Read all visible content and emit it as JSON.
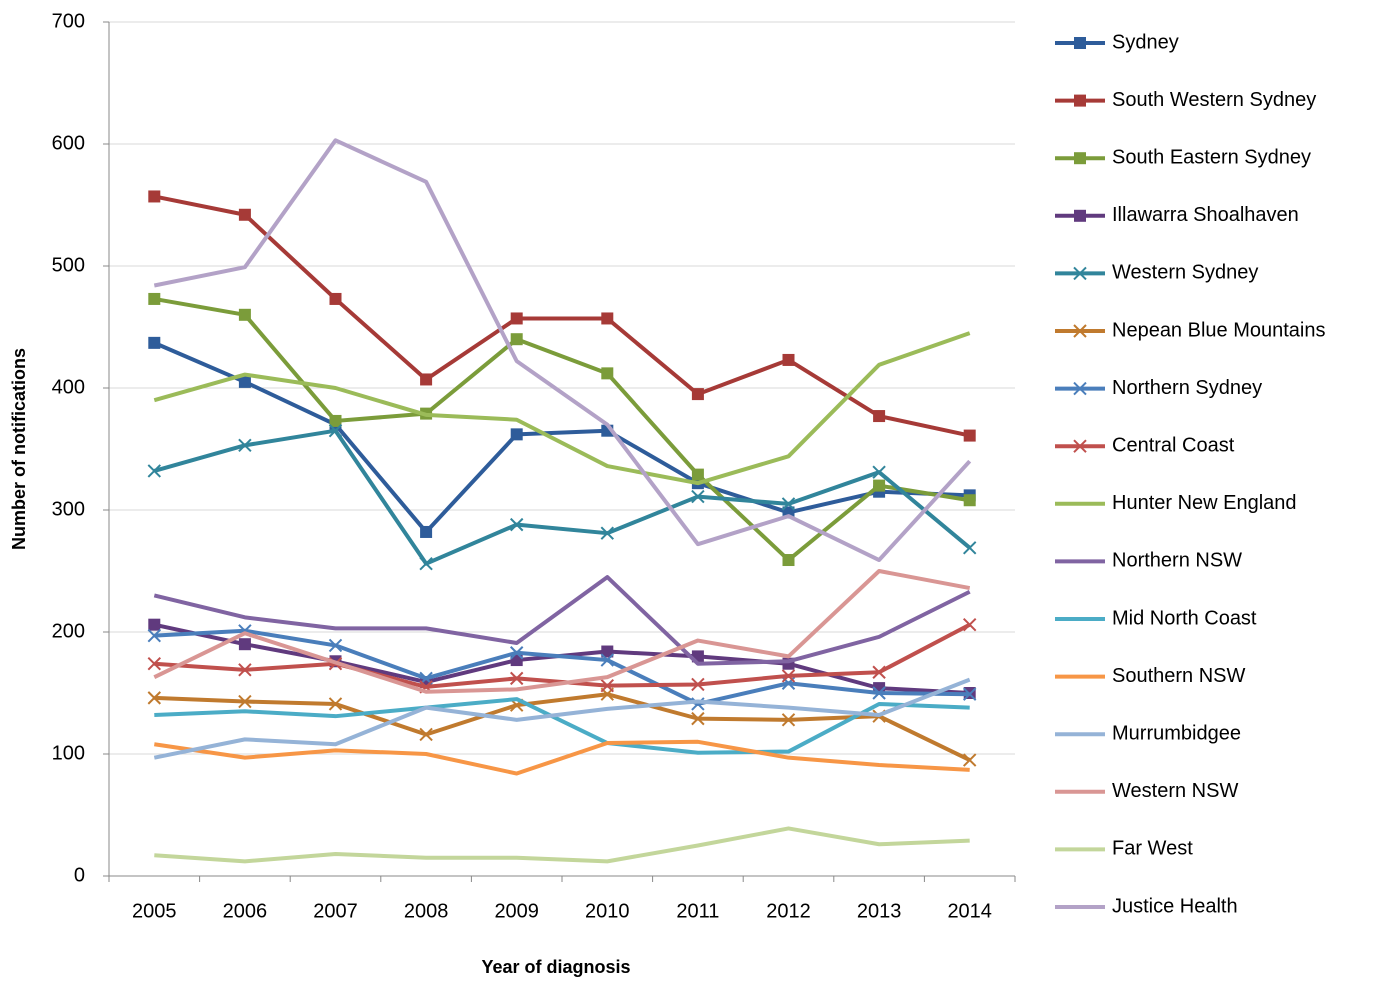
{
  "chart_data": {
    "type": "line",
    "x_label": "Year of diagnosis",
    "y_label": "Number of notifications",
    "categories": [
      "2005",
      "2006",
      "2007",
      "2008",
      "2009",
      "2010",
      "2011",
      "2012",
      "2013",
      "2014"
    ],
    "ylim": [
      0,
      700
    ],
    "yticks": [
      0,
      100,
      200,
      300,
      400,
      500,
      600,
      700
    ],
    "grid": true,
    "legend": "right",
    "series": [
      {
        "name": "Sydney",
        "color": "#2e5c9a",
        "marker": "square",
        "values": [
          437,
          405,
          370,
          282,
          362,
          365,
          322,
          298,
          315,
          312
        ]
      },
      {
        "name": "South Western Sydney",
        "color": "#a63a37",
        "marker": "square",
        "values": [
          557,
          542,
          473,
          407,
          457,
          457,
          395,
          423,
          377,
          361
        ]
      },
      {
        "name": "South Eastern Sydney",
        "color": "#7b9c3a",
        "marker": "square",
        "values": [
          473,
          460,
          373,
          379,
          440,
          412,
          329,
          259,
          320,
          308
        ]
      },
      {
        "name": "Illawarra Shoalhaven",
        "color": "#603a7e",
        "marker": "square",
        "values": [
          206,
          190,
          176,
          159,
          177,
          184,
          180,
          174,
          154,
          150
        ]
      },
      {
        "name": "Western Sydney",
        "color": "#31859b",
        "marker": "x",
        "values": [
          332,
          353,
          365,
          256,
          288,
          281,
          311,
          305,
          331,
          269
        ]
      },
      {
        "name": "Nepean Blue Mountains",
        "color": "#c07a2e",
        "marker": "x",
        "values": [
          146,
          143,
          141,
          116,
          140,
          149,
          129,
          128,
          131,
          95
        ]
      },
      {
        "name": "Northern Sydney",
        "color": "#4a7ebb",
        "marker": "x",
        "values": [
          197,
          201,
          189,
          162,
          183,
          177,
          141,
          158,
          150,
          149
        ]
      },
      {
        "name": "Central Coast",
        "color": "#c0504d",
        "marker": "x",
        "values": [
          174,
          169,
          174,
          155,
          162,
          156,
          157,
          164,
          167,
          206
        ]
      },
      {
        "name": "Hunter New England",
        "color": "#9bbb59",
        "values": [
          390,
          411,
          400,
          378,
          374,
          336,
          322,
          344,
          419,
          445
        ]
      },
      {
        "name": "Northern NSW",
        "color": "#8064a2",
        "values": [
          230,
          212,
          203,
          203,
          191,
          245,
          174,
          176,
          196,
          233
        ]
      },
      {
        "name": "Mid North Coast",
        "color": "#4bacc6",
        "values": [
          132,
          135,
          131,
          138,
          145,
          109,
          101,
          102,
          141,
          138
        ]
      },
      {
        "name": "Southern NSW",
        "color": "#f79646",
        "values": [
          108,
          97,
          103,
          100,
          84,
          109,
          110,
          97,
          91,
          87
        ]
      },
      {
        "name": "Murrumbidgee",
        "color": "#95b3d7",
        "values": [
          97,
          112,
          108,
          138,
          128,
          137,
          143,
          138,
          132,
          161
        ]
      },
      {
        "name": "Western NSW",
        "color": "#d99694",
        "values": [
          163,
          199,
          175,
          151,
          153,
          163,
          193,
          180,
          250,
          236
        ]
      },
      {
        "name": "Far West",
        "color": "#c3d69b",
        "values": [
          17,
          12,
          18,
          15,
          15,
          12,
          25,
          39,
          26,
          29
        ]
      },
      {
        "name": "Justice Health",
        "color": "#b3a2c7",
        "values": [
          484,
          499,
          603,
          569,
          422,
          370,
          272,
          295,
          259,
          340
        ]
      }
    ]
  }
}
